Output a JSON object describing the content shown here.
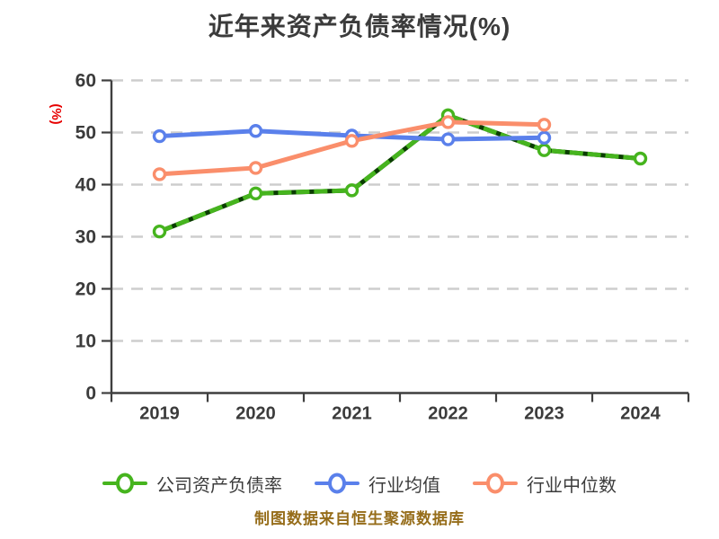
{
  "chart_data": {
    "type": "line",
    "title": "近年来资产负债率情况(%)",
    "ylabel": "(%)",
    "ylabel_color": "#e60000",
    "caption": "制图数据来自恒生聚源数据库",
    "caption_color": "#966d1a",
    "categories": [
      "2019",
      "2020",
      "2021",
      "2022",
      "2023",
      "2024"
    ],
    "yticks": [
      0,
      10,
      20,
      30,
      40,
      50,
      60
    ],
    "ylim": [
      0,
      60
    ],
    "grid": "horizontal-dashed",
    "legend_position": "bottom",
    "series": [
      {
        "name": "公司资产负债率",
        "color": "#46b41e",
        "marker": "open-circle",
        "line_style": "solid-with-dark-dashes",
        "values": [
          31.0,
          38.3,
          38.9,
          53.3,
          46.6,
          45.0
        ]
      },
      {
        "name": "行业均值",
        "color": "#5a80eb",
        "marker": "open-circle",
        "line_style": "solid",
        "values": [
          49.3,
          50.3,
          49.4,
          48.7,
          49.0,
          null
        ]
      },
      {
        "name": "行业中位数",
        "color": "#fa8e6b",
        "marker": "open-circle",
        "line_style": "solid",
        "values": [
          42.0,
          43.2,
          48.4,
          52.0,
          51.5,
          null
        ]
      }
    ]
  }
}
